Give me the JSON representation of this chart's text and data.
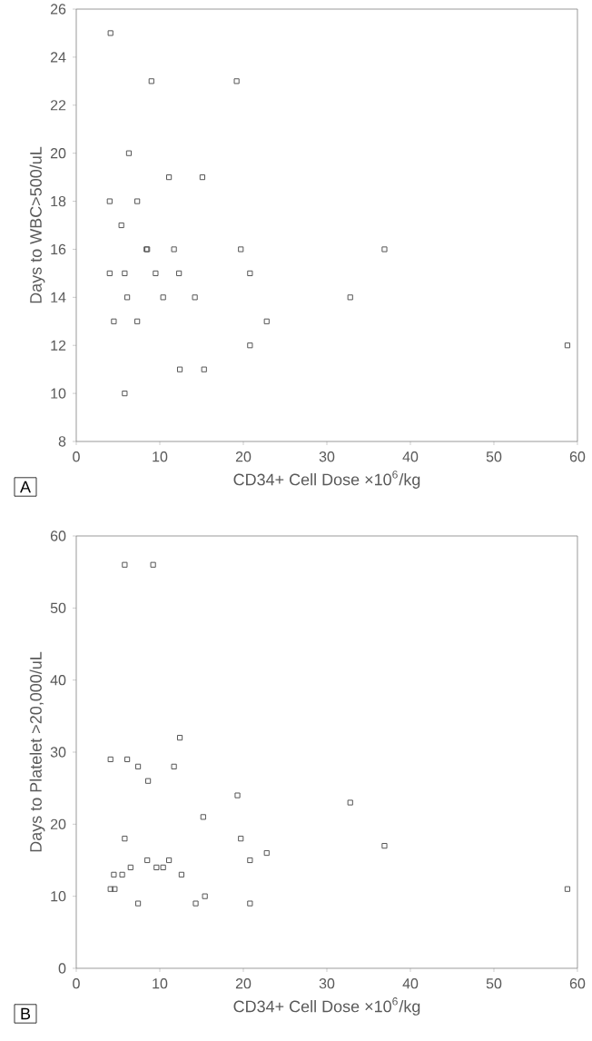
{
  "chart_data": [
    {
      "type": "scatter",
      "xlabel": "CD34+ Cell Dose ×10$^{6}$/kg",
      "ylabel": "Days to WBC>500/uL",
      "annotations": [
        "A"
      ],
      "xlim": [
        0,
        60
      ],
      "ylim": [
        8,
        26
      ],
      "xticks": [
        0,
        10,
        20,
        30,
        40,
        50,
        60
      ],
      "yticks": [
        8,
        10,
        12,
        14,
        16,
        18,
        20,
        22,
        24,
        26
      ],
      "marker": "square",
      "series": [
        {
          "color": "#555555",
          "x": [
            4.1,
            9.0,
            19.2,
            6.3,
            11.1,
            15.1,
            4.0,
            7.3,
            5.4,
            8.4,
            8.5,
            11.7,
            19.7,
            36.9,
            4.0,
            5.8,
            9.5,
            12.3,
            20.8,
            6.1,
            10.4,
            14.2,
            32.8,
            4.5,
            7.3,
            22.8,
            20.8,
            58.8,
            12.4,
            15.3,
            5.8
          ],
          "values": [
            25,
            23,
            23,
            20,
            19,
            19,
            18,
            18,
            17,
            16,
            16,
            16,
            16,
            16,
            15,
            15,
            15,
            15,
            15,
            14,
            14,
            14,
            14,
            13,
            13,
            13,
            12,
            12,
            11,
            11,
            10
          ]
        }
      ]
    },
    {
      "type": "scatter",
      "xlabel": "CD34+ Cell Dose ×10$^{6}$/kg",
      "ylabel": "Days to Platelet >20,000/uL",
      "annotations": [
        "B"
      ],
      "xlim": [
        0,
        60
      ],
      "ylim": [
        0,
        60
      ],
      "xticks": [
        0,
        10,
        20,
        30,
        40,
        50,
        60
      ],
      "yticks": [
        0,
        10,
        20,
        30,
        40,
        50,
        60
      ],
      "marker": "square",
      "series": [
        {
          "color": "#555555",
          "x": [
            5.8,
            9.2,
            12.4,
            4.1,
            6.1,
            7.4,
            11.7,
            8.6,
            19.3,
            32.8,
            15.2,
            5.8,
            19.7,
            36.9,
            22.8,
            8.5,
            11.1,
            20.8,
            6.5,
            9.6,
            10.4,
            4.5,
            5.5,
            12.6,
            4.1,
            4.6,
            58.8,
            15.4,
            7.4,
            14.3,
            20.8
          ],
          "values": [
            56,
            56,
            32,
            29,
            29,
            28,
            28,
            26,
            24,
            23,
            21,
            18,
            18,
            17,
            16,
            15,
            15,
            15,
            14,
            14,
            14,
            13,
            13,
            13,
            11,
            11,
            11,
            10,
            9,
            9,
            9
          ]
        }
      ]
    }
  ]
}
